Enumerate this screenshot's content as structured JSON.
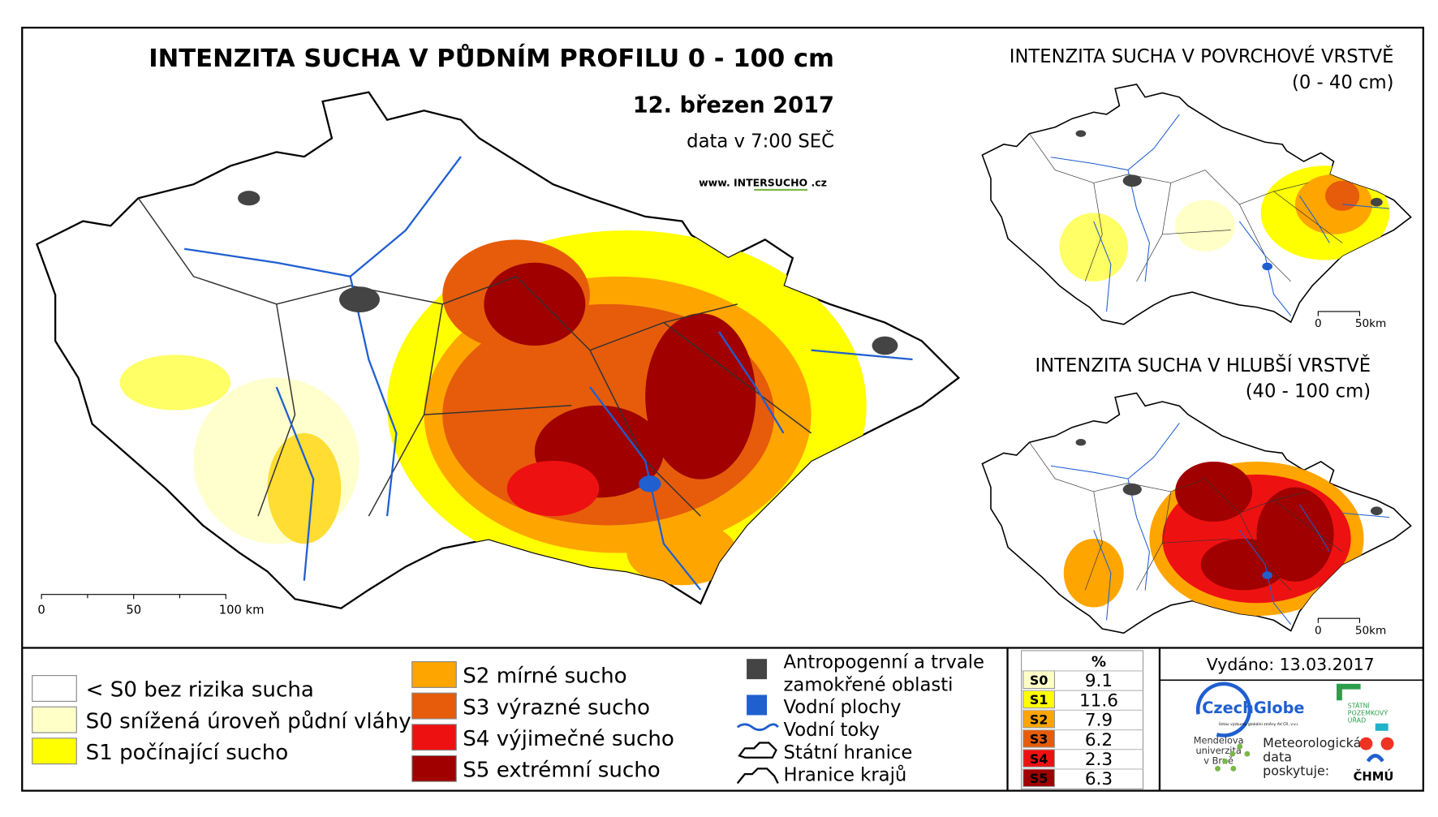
{
  "title": "INTENZITA SUCHA V PŮDNÍM PROFILU 0 - 100 cm",
  "date": "12. březen 2017",
  "data_time": "data v 7:00 SEČ",
  "website": "www. INTERSUCHO .cz",
  "main_scale": [
    "0",
    "50",
    "100 km"
  ],
  "surface_map": {
    "title": "INTENZITA SUCHA V POVRCHOVÉ VRSTVĚ",
    "depth": "(0 - 40 cm)",
    "scale": [
      "0",
      "50km"
    ]
  },
  "deep_map": {
    "title": "INTENZITA SUCHA V HLUBŠÍ VRSTVĚ",
    "depth": "(40 - 100 cm)",
    "scale": [
      "0",
      "50km"
    ]
  },
  "legend": {
    "drought": [
      {
        "label": "< S0 bez rizika sucha",
        "color": "#ffffff"
      },
      {
        "label": "S0 snížená úroveň půdní vláhy",
        "color": "#ffffc8"
      },
      {
        "label": "S1 počínající sucho",
        "color": "#ffff00"
      },
      {
        "label": "S2 mírné sucho",
        "color": "#ffa500"
      },
      {
        "label": "S3 výrazné sucho",
        "color": "#e65c0a"
      },
      {
        "label": "S4 výjimečné sucho",
        "color": "#ee1111"
      },
      {
        "label": "S5 extrémní sucho",
        "color": "#a00000"
      }
    ],
    "other": [
      {
        "lines": [
          "Antropogenní a trvale",
          "zamokřené oblasti"
        ]
      },
      {
        "lines": [
          "Vodní plochy"
        ]
      },
      {
        "lines": [
          "Vodní toky"
        ]
      },
      {
        "lines": [
          "Státní hranice"
        ]
      },
      {
        "lines": [
          "Hranice krajů"
        ]
      }
    ]
  },
  "table": {
    "header": "%",
    "rows": [
      [
        "S0",
        9.1
      ],
      [
        "S1",
        11.6
      ],
      [
        "S2",
        7.9
      ],
      [
        "S3",
        6.2
      ],
      [
        "S4",
        2.3
      ],
      [
        "S5",
        6.3
      ]
    ]
  },
  "issued": "Vydáno: 13.03.2017",
  "logos": {
    "czechglobe": "CzechGlobe",
    "czechglobe_sub": "Ústav výzkumu globální změny AV ČR, v.v.i.",
    "mendel": [
      "Mendelova",
      "univerzita",
      "v Brně"
    ],
    "spu": [
      "STÁTNÍ",
      "POZEMKOVÝ",
      "ÚŘAD"
    ],
    "provider": [
      "Meteorologická",
      "data",
      "poskytuje:"
    ],
    "chmu": "ČHMÚ"
  }
}
